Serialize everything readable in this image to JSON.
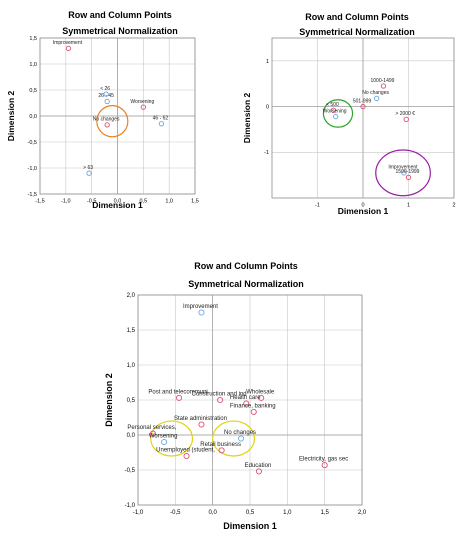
{
  "colors": {
    "row_point": "#e0506e",
    "col_point": "#6aa6e0",
    "grid": "#c8c8c8",
    "axis": "#000000"
  },
  "chart_data": [
    {
      "type": "scatter",
      "title": "Row and Column Points",
      "subtitle": "Symmetrical Normalization",
      "xlabel": "Dimension 1",
      "ylabel": "Dimension 2",
      "xlim": [
        -1.5,
        1.5
      ],
      "ylim": [
        -1.5,
        1.5
      ],
      "xticks": [
        "-1,5",
        "-1,0",
        "-0,5",
        "0,0",
        "0,5",
        "1,0",
        "1,5"
      ],
      "yticks": [
        "-1,5",
        "-1,0",
        "-0,5",
        "0,0",
        "0,5",
        "1,0",
        "1,5"
      ],
      "grid": true,
      "points": [
        {
          "label": "Improvement",
          "x": -0.95,
          "y": 1.3,
          "kind": "row"
        },
        {
          "label": "< 26",
          "x": -0.22,
          "y": 0.42,
          "kind": "col"
        },
        {
          "label": "26 - 45",
          "x": -0.2,
          "y": 0.28,
          "kind": "col"
        },
        {
          "label": "Worsening",
          "x": 0.5,
          "y": 0.17,
          "kind": "row"
        },
        {
          "label": "No changes",
          "x": -0.2,
          "y": -0.17,
          "kind": "row"
        },
        {
          "label": "46 - 62",
          "x": 0.85,
          "y": -0.15,
          "kind": "col"
        },
        {
          "label": "> 63",
          "x": -0.55,
          "y": -1.1,
          "kind": "col"
        }
      ],
      "highlight_ellipses": [
        {
          "cx": -0.1,
          "cy": -0.1,
          "rx": 0.3,
          "ry": 0.3,
          "color": "#f07d1e"
        }
      ]
    },
    {
      "type": "scatter",
      "title": "Row and Column Points",
      "subtitle": "Symmetrical Normalization",
      "xlabel": "Dimension 1",
      "ylabel": "Dimension 2",
      "xlim": [
        -2,
        2
      ],
      "ylim": [
        -2,
        1.5
      ],
      "xticks": [
        "-1",
        "0",
        "1",
        "2"
      ],
      "yticks": [
        "-1",
        "0",
        "1"
      ],
      "grid": true,
      "points": [
        {
          "label": "1000-1499",
          "x": 0.45,
          "y": 0.45,
          "kind": "row"
        },
        {
          "label": "No changes",
          "x": 0.3,
          "y": 0.18,
          "kind": "col"
        },
        {
          "label": "501-999",
          "x": 0.0,
          "y": 0.0,
          "kind": "row"
        },
        {
          "label": "< 500",
          "x": -0.65,
          "y": -0.08,
          "kind": "row"
        },
        {
          "label": "Worsening",
          "x": -0.6,
          "y": -0.22,
          "kind": "col"
        },
        {
          "label": "> 2000 €",
          "x": 0.95,
          "y": -0.28,
          "kind": "row"
        },
        {
          "label": "Improvement",
          "x": 0.9,
          "y": -1.45,
          "kind": "col"
        },
        {
          "label": "1500-1999",
          "x": 1.0,
          "y": -1.55,
          "kind": "row"
        }
      ],
      "highlight_ellipses": [
        {
          "cx": -0.55,
          "cy": -0.15,
          "rx": 0.32,
          "ry": 0.3,
          "color": "#2aa52a"
        },
        {
          "cx": 0.88,
          "cy": -1.45,
          "rx": 0.6,
          "ry": 0.5,
          "color": "#9a1fa6"
        }
      ]
    },
    {
      "type": "scatter",
      "title": "Row and Column Points",
      "subtitle": "Symmetrical Normalization",
      "xlabel": "Dimension 1",
      "ylabel": "Dimension 2",
      "xlim": [
        -1.0,
        2.0
      ],
      "ylim": [
        -1.0,
        2.0
      ],
      "xticks": [
        "-1,0",
        "-0,5",
        "0,0",
        "0,5",
        "1,0",
        "1,5",
        "2,0"
      ],
      "yticks": [
        "-1,0",
        "-0,5",
        "0,0",
        "0,5",
        "1,0",
        "1,5",
        "2,0"
      ],
      "grid": true,
      "points": [
        {
          "label": "Improvement",
          "x": -0.15,
          "y": 1.75,
          "kind": "col"
        },
        {
          "label": "Post and telecommuni",
          "x": -0.45,
          "y": 0.53,
          "kind": "row"
        },
        {
          "label": "Wholesale",
          "x": 0.65,
          "y": 0.53,
          "kind": "row"
        },
        {
          "label": "Construction and ind",
          "x": 0.1,
          "y": 0.5,
          "kind": "row"
        },
        {
          "label": "Health care",
          "x": 0.45,
          "y": 0.45,
          "kind": "row"
        },
        {
          "label": "Finance, banking",
          "x": 0.55,
          "y": 0.33,
          "kind": "row"
        },
        {
          "label": "State administration",
          "x": -0.15,
          "y": 0.15,
          "kind": "row"
        },
        {
          "label": "Personal services,",
          "x": -0.8,
          "y": 0.02,
          "kind": "row"
        },
        {
          "label": "No changes",
          "x": 0.38,
          "y": -0.05,
          "kind": "col"
        },
        {
          "label": "Worsening",
          "x": -0.65,
          "y": -0.1,
          "kind": "col"
        },
        {
          "label": "Retail business",
          "x": 0.12,
          "y": -0.22,
          "kind": "row"
        },
        {
          "label": "Unemployed (student,",
          "x": -0.35,
          "y": -0.3,
          "kind": "row"
        },
        {
          "label": "Electricity, gas sec",
          "x": 1.5,
          "y": -0.43,
          "kind": "row"
        },
        {
          "label": "Education",
          "x": 0.62,
          "y": -0.52,
          "kind": "row"
        }
      ],
      "highlight_ellipses": [
        {
          "cx": -0.55,
          "cy": -0.05,
          "rx": 0.28,
          "ry": 0.25,
          "color": "#e2d316"
        },
        {
          "cx": 0.28,
          "cy": -0.05,
          "rx": 0.28,
          "ry": 0.25,
          "color": "#e2d316"
        }
      ]
    }
  ]
}
